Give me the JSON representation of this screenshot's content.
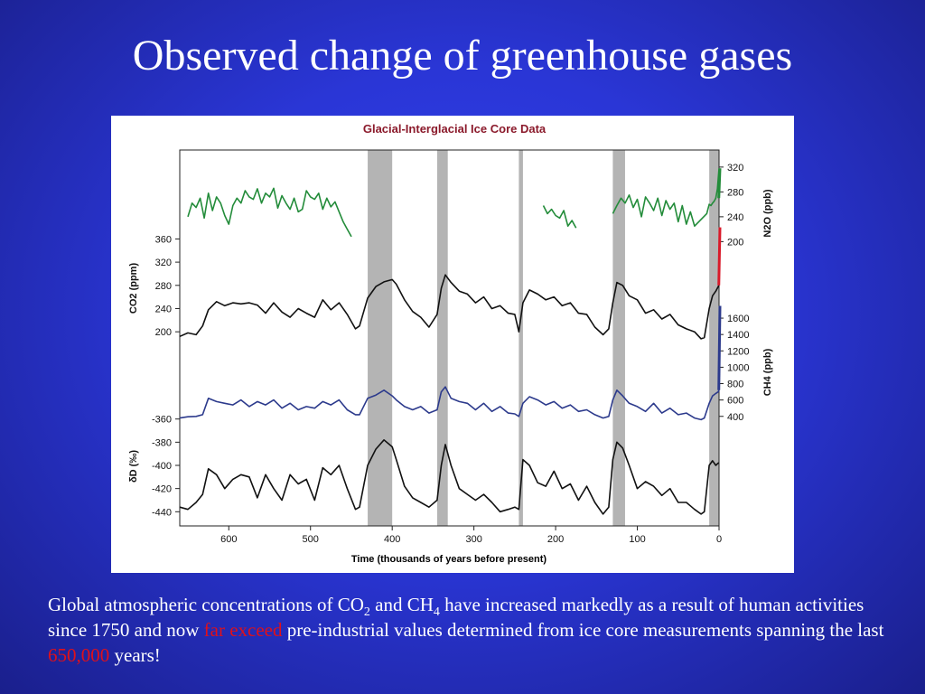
{
  "slide": {
    "title": "Observed change of greenhouse gases"
  },
  "caption": {
    "part1": "Global atmospheric concentrations of CO",
    "sub1": "2",
    "part2": " and CH",
    "sub2": "4",
    "part3": " have increased markedly as a result of human activities since 1750 and now ",
    "highlight1": "far exceed",
    "part4": " pre-industrial values determined from ice core measurements spanning the last ",
    "highlight2": "650,000",
    "part5": " years!",
    "highlight_color": "#e0101a"
  },
  "chart_data": {
    "type": "line",
    "title": "Glacial-Interglacial Ice Core Data",
    "title_color": "#8b1a2b",
    "xlabel": "Time (thousands of years before present)",
    "xlim": [
      660,
      0
    ],
    "x_ticks": [
      "600",
      "500",
      "400",
      "300",
      "200",
      "100",
      "0"
    ],
    "interglacial_bands": [
      [
        430,
        400
      ],
      [
        345,
        332
      ],
      [
        245,
        240
      ],
      [
        130,
        115
      ],
      [
        12,
        0
      ]
    ],
    "band_color": "#b4b4b4",
    "legend": "none",
    "grid": false,
    "series": [
      {
        "name": "N2O",
        "axis_label": "N2O (ppb)",
        "axis_side": "right",
        "color": "#238c3a",
        "ylim": [
          170,
          330
        ],
        "y_ticks": [
          320,
          280,
          240,
          200
        ],
        "x": [
          650,
          645,
          640,
          635,
          630,
          625,
          620,
          615,
          610,
          605,
          600,
          595,
          590,
          585,
          580,
          575,
          570,
          565,
          560,
          555,
          550,
          545,
          540,
          535,
          530,
          525,
          520,
          515,
          510,
          505,
          500,
          495,
          490,
          485,
          480,
          475,
          470,
          465,
          460,
          455,
          450,
          215,
          210,
          205,
          200,
          195,
          190,
          185,
          180,
          175,
          130,
          125,
          120,
          115,
          110,
          105,
          100,
          95,
          90,
          85,
          80,
          75,
          70,
          65,
          60,
          55,
          50,
          45,
          40,
          35,
          30,
          15,
          12,
          10,
          8,
          6,
          4,
          2,
          0
        ],
        "y": [
          240,
          262,
          255,
          270,
          238,
          278,
          250,
          272,
          262,
          242,
          228,
          258,
          270,
          262,
          282,
          272,
          268,
          285,
          262,
          278,
          272,
          286,
          254,
          274,
          262,
          252,
          270,
          248,
          252,
          282,
          272,
          268,
          278,
          252,
          270,
          256,
          264,
          248,
          232,
          220,
          208,
          258,
          245,
          252,
          242,
          238,
          250,
          225,
          234,
          222,
          245,
          258,
          270,
          262,
          275,
          255,
          268,
          240,
          272,
          262,
          250,
          270,
          242,
          266,
          252,
          262,
          232,
          258,
          228,
          248,
          225,
          245,
          260,
          258,
          262,
          265,
          270,
          285,
          318
        ],
        "modern_segment": {
          "x": [
            0.3,
            0
          ],
          "y": [
            270,
            318
          ],
          "color": "#238c3a"
        }
      },
      {
        "name": "CO2",
        "axis_label": "CO2 (ppm)",
        "axis_side": "left",
        "color": "#111111",
        "ylim": [
          180,
          370
        ],
        "y_ticks": [
          360,
          320,
          280,
          240,
          200
        ],
        "x": [
          660,
          650,
          640,
          632,
          625,
          615,
          605,
          595,
          585,
          575,
          565,
          555,
          545,
          535,
          525,
          515,
          505,
          495,
          485,
          475,
          465,
          455,
          445,
          440,
          430,
          420,
          410,
          400,
          395,
          385,
          375,
          365,
          355,
          345,
          340,
          335,
          328,
          318,
          308,
          298,
          288,
          278,
          268,
          258,
          250,
          245,
          240,
          232,
          222,
          212,
          202,
          192,
          182,
          172,
          162,
          152,
          142,
          135,
          130,
          125,
          118,
          110,
          100,
          90,
          80,
          70,
          60,
          50,
          40,
          30,
          22,
          18,
          12,
          8,
          4,
          1,
          0
        ],
        "y": [
          192,
          198,
          195,
          210,
          238,
          252,
          245,
          250,
          248,
          250,
          246,
          232,
          250,
          234,
          225,
          240,
          232,
          225,
          255,
          238,
          250,
          230,
          205,
          210,
          258,
          278,
          286,
          290,
          282,
          255,
          235,
          225,
          208,
          230,
          275,
          298,
          285,
          270,
          265,
          250,
          260,
          240,
          245,
          232,
          230,
          200,
          250,
          272,
          265,
          255,
          260,
          245,
          250,
          232,
          230,
          208,
          195,
          205,
          250,
          285,
          280,
          262,
          255,
          232,
          238,
          222,
          230,
          212,
          205,
          200,
          188,
          190,
          240,
          262,
          270,
          278,
          280
        ],
        "modern_segment": {
          "x": [
            0.3,
            0
          ],
          "y": [
            280,
            380
          ],
          "color": "#d91a2a"
        }
      },
      {
        "name": "CH4",
        "axis_label": "CH4 (ppb)",
        "axis_side": "right",
        "color": "#2c3a8c",
        "ylim": [
          320,
          1700
        ],
        "y_ticks": [
          1600,
          1400,
          1200,
          1000,
          800,
          600,
          400
        ],
        "x": [
          660,
          650,
          640,
          632,
          625,
          615,
          605,
          595,
          585,
          575,
          565,
          555,
          545,
          535,
          525,
          515,
          505,
          495,
          485,
          475,
          465,
          455,
          445,
          440,
          430,
          420,
          410,
          400,
          395,
          385,
          375,
          365,
          355,
          345,
          340,
          335,
          328,
          318,
          308,
          298,
          288,
          278,
          268,
          258,
          250,
          245,
          240,
          232,
          222,
          212,
          202,
          192,
          182,
          172,
          162,
          152,
          142,
          135,
          130,
          125,
          118,
          110,
          100,
          90,
          80,
          70,
          60,
          50,
          40,
          30,
          22,
          18,
          12,
          8,
          4,
          1,
          0
        ],
        "y": [
          380,
          395,
          400,
          420,
          620,
          580,
          560,
          540,
          600,
          520,
          580,
          540,
          600,
          500,
          560,
          480,
          520,
          500,
          580,
          540,
          600,
          480,
          420,
          420,
          620,
          660,
          720,
          650,
          600,
          520,
          480,
          520,
          440,
          480,
          700,
          760,
          620,
          580,
          560,
          480,
          560,
          460,
          520,
          440,
          430,
          400,
          560,
          640,
          600,
          540,
          580,
          500,
          540,
          460,
          480,
          420,
          380,
          400,
          600,
          720,
          650,
          560,
          520,
          460,
          560,
          440,
          500,
          420,
          440,
          380,
          360,
          380,
          560,
          650,
          680,
          700,
          720
        ],
        "modern_segment": {
          "x": [
            0.3,
            0
          ],
          "y": [
            720,
            1750
          ],
          "color": "#2c3a8c"
        }
      },
      {
        "name": "δD",
        "axis_label": "δD (‰)",
        "axis_side": "left",
        "color": "#111111",
        "ylim": [
          -446,
          -354
        ],
        "y_ticks": [
          -360,
          -380,
          -400,
          -420,
          -440
        ],
        "x": [
          660,
          650,
          640,
          632,
          625,
          615,
          605,
          595,
          585,
          575,
          565,
          555,
          545,
          535,
          525,
          515,
          505,
          495,
          485,
          475,
          465,
          455,
          445,
          440,
          430,
          420,
          410,
          400,
          395,
          385,
          375,
          365,
          355,
          345,
          340,
          335,
          328,
          318,
          308,
          298,
          288,
          278,
          268,
          258,
          250,
          245,
          240,
          232,
          222,
          212,
          202,
          192,
          182,
          172,
          162,
          152,
          142,
          135,
          130,
          125,
          118,
          110,
          100,
          90,
          80,
          70,
          60,
          50,
          40,
          30,
          22,
          18,
          12,
          8,
          4,
          1,
          0
        ],
        "y": [
          -436,
          -438,
          -432,
          -425,
          -403,
          -408,
          -420,
          -412,
          -408,
          -410,
          -428,
          -408,
          -420,
          -430,
          -408,
          -416,
          -412,
          -430,
          -402,
          -408,
          -400,
          -420,
          -438,
          -436,
          -400,
          -386,
          -378,
          -384,
          -395,
          -418,
          -428,
          -432,
          -436,
          -430,
          -400,
          -382,
          -400,
          -420,
          -425,
          -430,
          -425,
          -432,
          -440,
          -438,
          -436,
          -438,
          -395,
          -400,
          -415,
          -418,
          -405,
          -420,
          -416,
          -430,
          -418,
          -432,
          -442,
          -436,
          -395,
          -380,
          -385,
          -400,
          -420,
          -414,
          -418,
          -426,
          -420,
          -432,
          -432,
          -438,
          -442,
          -440,
          -400,
          -396,
          -400,
          -398,
          -398
        ]
      }
    ]
  }
}
